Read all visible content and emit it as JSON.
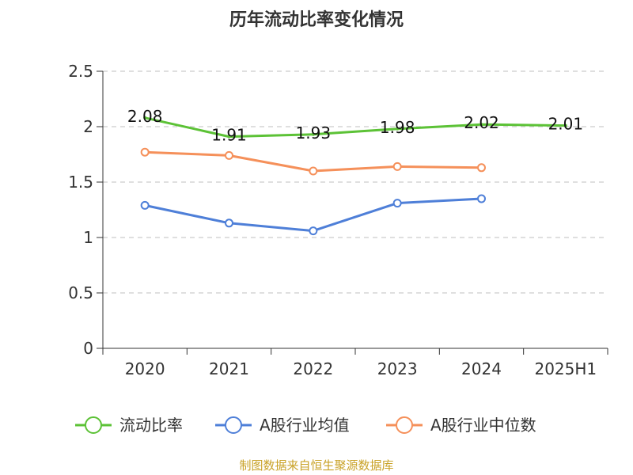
{
  "chart_data": {
    "type": "line",
    "title": "历年流动比率变化情况",
    "categories": [
      "2020",
      "2021",
      "2022",
      "2023",
      "2024",
      "2025H1"
    ],
    "ylim": [
      0,
      2.5
    ],
    "yticks": [
      "0",
      "0.5",
      "1",
      "1.5",
      "2",
      "2.5"
    ],
    "grid": true,
    "legend_position": "bottom",
    "series": [
      {
        "name": "流动比率",
        "color": "#5cc236",
        "values": [
          2.08,
          1.91,
          1.93,
          1.98,
          2.02,
          2.01
        ],
        "labels": [
          "2.08",
          "1.91",
          "1.93",
          "1.98",
          "2.02",
          "2.01"
        ]
      },
      {
        "name": "A股行业均值",
        "color": "#4e7fd8",
        "values": [
          1.29,
          1.13,
          1.06,
          1.31,
          1.35,
          null
        ]
      },
      {
        "name": "A股行业中位数",
        "color": "#f5905a",
        "values": [
          1.77,
          1.74,
          1.6,
          1.64,
          1.63,
          null
        ]
      }
    ]
  },
  "footer": {
    "source": "制图数据来自恒生聚源数据库"
  }
}
